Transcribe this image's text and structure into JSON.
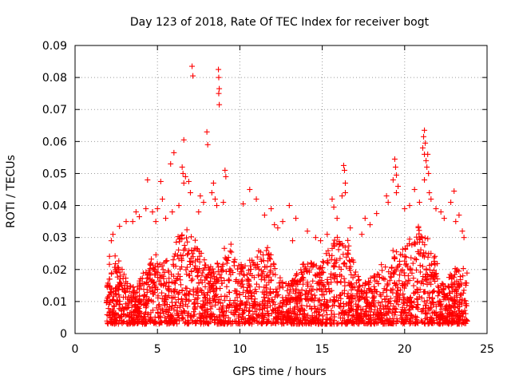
{
  "chart_data": {
    "type": "scatter",
    "title": "Day 123 of 2018, Rate Of TEC Index for receiver bogt",
    "xlabel": "GPS time / hours",
    "ylabel": "ROTI / TECUs",
    "xlim": [
      0,
      25
    ],
    "ylim": [
      0,
      0.09
    ],
    "x_ticks": [
      "0",
      "5",
      "10",
      "15",
      "20",
      "25"
    ],
    "y_ticks": [
      "0",
      "0.01",
      "0.02",
      "0.03",
      "0.04",
      "0.05",
      "0.06",
      "0.07",
      "0.08",
      "0.09"
    ],
    "grid": true,
    "marker": "+",
    "series_color": "#ff0000",
    "series": [
      {
        "name": "ROTI",
        "points": [
          [
            7.1,
            0.0835
          ],
          [
            7.15,
            0.0805
          ],
          [
            8.7,
            0.0825
          ],
          [
            8.72,
            0.08
          ],
          [
            8.75,
            0.0765
          ],
          [
            8.72,
            0.075
          ],
          [
            8.75,
            0.0715
          ],
          [
            6.6,
            0.0605
          ],
          [
            8.0,
            0.063
          ],
          [
            8.05,
            0.059
          ],
          [
            6.0,
            0.0565
          ],
          [
            5.8,
            0.053
          ],
          [
            6.5,
            0.052
          ],
          [
            6.55,
            0.05
          ],
          [
            6.7,
            0.049
          ],
          [
            6.9,
            0.0475
          ],
          [
            7.0,
            0.044
          ],
          [
            6.6,
            0.047
          ],
          [
            4.4,
            0.048
          ],
          [
            5.2,
            0.0475
          ],
          [
            5.3,
            0.042
          ],
          [
            5.0,
            0.039
          ],
          [
            9.1,
            0.051
          ],
          [
            9.15,
            0.049
          ],
          [
            8.4,
            0.047
          ],
          [
            8.3,
            0.044
          ],
          [
            8.5,
            0.042
          ],
          [
            8.6,
            0.04
          ],
          [
            9.0,
            0.041
          ],
          [
            7.6,
            0.043
          ],
          [
            7.8,
            0.041
          ],
          [
            7.5,
            0.038
          ],
          [
            6.3,
            0.04
          ],
          [
            5.9,
            0.038
          ],
          [
            10.6,
            0.045
          ],
          [
            10.2,
            0.0405
          ],
          [
            11.0,
            0.042
          ],
          [
            11.5,
            0.037
          ],
          [
            11.9,
            0.039
          ],
          [
            12.1,
            0.034
          ],
          [
            12.3,
            0.033
          ],
          [
            12.6,
            0.035
          ],
          [
            13.0,
            0.04
          ],
          [
            13.4,
            0.036
          ],
          [
            13.2,
            0.029
          ],
          [
            3.7,
            0.038
          ],
          [
            3.5,
            0.035
          ],
          [
            3.9,
            0.0365
          ],
          [
            3.1,
            0.035
          ],
          [
            2.7,
            0.0335
          ],
          [
            2.3,
            0.031
          ],
          [
            2.2,
            0.029
          ],
          [
            4.3,
            0.039
          ],
          [
            4.7,
            0.038
          ],
          [
            4.9,
            0.035
          ],
          [
            5.5,
            0.036
          ],
          [
            16.3,
            0.0525
          ],
          [
            16.35,
            0.051
          ],
          [
            16.4,
            0.047
          ],
          [
            16.4,
            0.044
          ],
          [
            16.2,
            0.043
          ],
          [
            15.6,
            0.042
          ],
          [
            15.7,
            0.0395
          ],
          [
            15.9,
            0.036
          ],
          [
            16.7,
            0.033
          ],
          [
            15.3,
            0.031
          ],
          [
            19.4,
            0.0545
          ],
          [
            19.45,
            0.052
          ],
          [
            19.5,
            0.0495
          ],
          [
            19.3,
            0.048
          ],
          [
            19.6,
            0.046
          ],
          [
            19.5,
            0.044
          ],
          [
            18.9,
            0.043
          ],
          [
            19.0,
            0.041
          ],
          [
            18.3,
            0.0375
          ],
          [
            17.9,
            0.034
          ],
          [
            17.4,
            0.031
          ],
          [
            17.6,
            0.036
          ],
          [
            21.2,
            0.0635
          ],
          [
            21.15,
            0.0615
          ],
          [
            21.25,
            0.0595
          ],
          [
            21.1,
            0.058
          ],
          [
            21.2,
            0.056
          ],
          [
            21.3,
            0.054
          ],
          [
            21.4,
            0.056
          ],
          [
            21.35,
            0.052
          ],
          [
            21.45,
            0.05
          ],
          [
            21.2,
            0.048
          ],
          [
            21.5,
            0.044
          ],
          [
            21.6,
            0.042
          ],
          [
            20.6,
            0.045
          ],
          [
            20.9,
            0.041
          ],
          [
            20.3,
            0.04
          ],
          [
            20.0,
            0.039
          ],
          [
            21.9,
            0.039
          ],
          [
            22.2,
            0.038
          ],
          [
            22.4,
            0.036
          ],
          [
            22.8,
            0.041
          ],
          [
            23.0,
            0.0445
          ],
          [
            23.3,
            0.037
          ],
          [
            23.1,
            0.035
          ],
          [
            23.5,
            0.032
          ],
          [
            23.6,
            0.03
          ],
          [
            14.1,
            0.032
          ],
          [
            14.6,
            0.03
          ],
          [
            14.9,
            0.029
          ]
        ]
      }
    ]
  }
}
